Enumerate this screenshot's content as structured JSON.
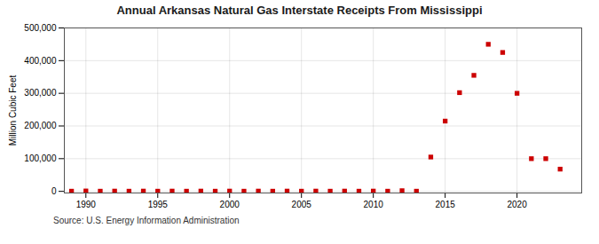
{
  "chart_data": {
    "type": "scatter",
    "title": "Annual Arkansas Natural Gas Interstate Receipts From Mississippi",
    "ylabel": "Million Cubic Feet",
    "annotations": [
      "Source: U.S. Energy Information Administration"
    ],
    "x": [
      1989,
      1990,
      1991,
      1992,
      1993,
      1994,
      1995,
      1996,
      1997,
      1998,
      1999,
      2000,
      2001,
      2002,
      2003,
      2004,
      2005,
      2006,
      2007,
      2008,
      2009,
      2010,
      2011,
      2012,
      2013,
      2014,
      2015,
      2016,
      2017,
      2018,
      2019,
      2020,
      2021,
      2022,
      2023
    ],
    "values": [
      500,
      1200,
      500,
      800,
      500,
      800,
      500,
      800,
      500,
      800,
      500,
      800,
      500,
      800,
      500,
      800,
      500,
      800,
      500,
      800,
      500,
      800,
      500,
      2000,
      500,
      105000,
      215000,
      302000,
      355000,
      450000,
      425000,
      300000,
      100000,
      100000,
      68000
    ],
    "color": "#cc0000",
    "marker": "square",
    "xlim": [
      1988.5,
      2024.5
    ],
    "ylim": [
      -5000,
      500000
    ],
    "xticks": [
      1990,
      1995,
      2000,
      2005,
      2010,
      2015,
      2020
    ],
    "yticks": [
      0,
      {
        "value": 100000,
        "label": "100,000"
      },
      {
        "value": 200000,
        "label": "200,000"
      },
      {
        "value": 300000,
        "label": "300,000"
      },
      {
        "value": 400000,
        "label": "400,000"
      },
      {
        "value": 500000,
        "label": "500,000"
      }
    ],
    "grid": true
  }
}
